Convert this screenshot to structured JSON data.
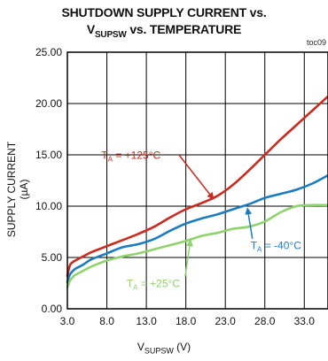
{
  "chart_data": {
    "type": "line",
    "title_line1": "SHUTDOWN SUPPLY CURRENT vs.",
    "title_line2_main": "V",
    "title_line2_sub": "SUPSW",
    "title_line2_rest": " vs. TEMPERATURE",
    "figure_id": "toc09",
    "xlabel_main": "V",
    "xlabel_sub": "SUPSW",
    "xlabel_rest": " (V)",
    "ylabel": "SUPPLY CURRENT (µA)",
    "xlim": [
      3.0,
      36.0
    ],
    "ylim": [
      0.0,
      25.0
    ],
    "x_ticks": [
      3.0,
      8.0,
      13.0,
      18.0,
      23.0,
      28.0,
      33.0
    ],
    "x_tick_labels": [
      "3.0",
      "8.0",
      "13.0",
      "18.0",
      "23.0",
      "28.0",
      "33.0"
    ],
    "y_ticks": [
      0,
      5,
      10,
      15,
      20,
      25
    ],
    "y_tick_labels": [
      "0.00",
      "5.00",
      "10.00",
      "15.00",
      "20.00",
      "25.00"
    ],
    "grid": true,
    "series": [
      {
        "name": "TA = +125°C",
        "color": "#cc2a1e",
        "x": [
          3.0,
          3.3,
          3.6,
          4.0,
          5.0,
          6.0,
          8.0,
          10.0,
          12.0,
          14.0,
          16.0,
          18.0,
          20.0,
          22.0,
          24.0,
          26.0,
          28.0,
          30.0,
          32.0,
          34.0,
          36.0
        ],
        "y": [
          3.2,
          4.2,
          4.5,
          4.7,
          5.1,
          5.5,
          6.1,
          6.7,
          7.3,
          8.0,
          8.9,
          9.7,
          10.3,
          11.0,
          12.1,
          13.5,
          15.0,
          16.5,
          17.9,
          19.3,
          20.7
        ]
      },
      {
        "name": "TA = -40°C",
        "color": "#1b7cc0",
        "x": [
          3.0,
          3.3,
          3.6,
          4.0,
          5.0,
          6.0,
          8.0,
          10.0,
          12.0,
          14.0,
          16.0,
          18.0,
          20.0,
          22.0,
          24.0,
          26.0,
          28.0,
          30.0,
          32.0,
          34.0,
          36.0
        ],
        "y": [
          2.6,
          3.3,
          3.6,
          3.9,
          4.3,
          4.8,
          5.4,
          6.0,
          6.3,
          6.8,
          7.6,
          8.3,
          8.8,
          9.2,
          9.7,
          10.2,
          10.8,
          11.2,
          11.6,
          12.2,
          13.0
        ]
      },
      {
        "name": "TA = +25°C",
        "color": "#8fd36c",
        "x": [
          3.0,
          3.3,
          3.6,
          4.0,
          5.0,
          6.0,
          8.0,
          10.0,
          12.0,
          14.0,
          16.0,
          18.0,
          20.0,
          22.0,
          24.0,
          26.0,
          28.0,
          30.0,
          32.0,
          34.0,
          36.0
        ],
        "y": [
          2.1,
          2.7,
          3.0,
          3.3,
          3.7,
          4.1,
          4.7,
          5.1,
          5.4,
          5.8,
          6.2,
          6.6,
          7.1,
          7.4,
          7.8,
          8.0,
          8.5,
          9.4,
          10.0,
          10.1,
          10.1
        ]
      }
    ],
    "annotations": [
      {
        "main": "T",
        "sub": "A",
        "rest": " = +125°C",
        "color": "#cc2a1e",
        "text_x": 7.3,
        "text_y": 14.6,
        "arrow_to_x": 21.5,
        "arrow_to_y": 10.7
      },
      {
        "main": "T",
        "sub": "A",
        "rest": " = -40°C",
        "color": "#1b7cc0",
        "text_x": 26.2,
        "text_y": 5.8,
        "arrow_to_x": 25.8,
        "arrow_to_y": 9.8
      },
      {
        "main": "T",
        "sub": "A",
        "rest": " = +25°C",
        "color": "#8fd36c",
        "text_x": 10.5,
        "text_y": 2.1,
        "arrow_to_x": 18.6,
        "arrow_to_y": 6.7
      }
    ]
  }
}
